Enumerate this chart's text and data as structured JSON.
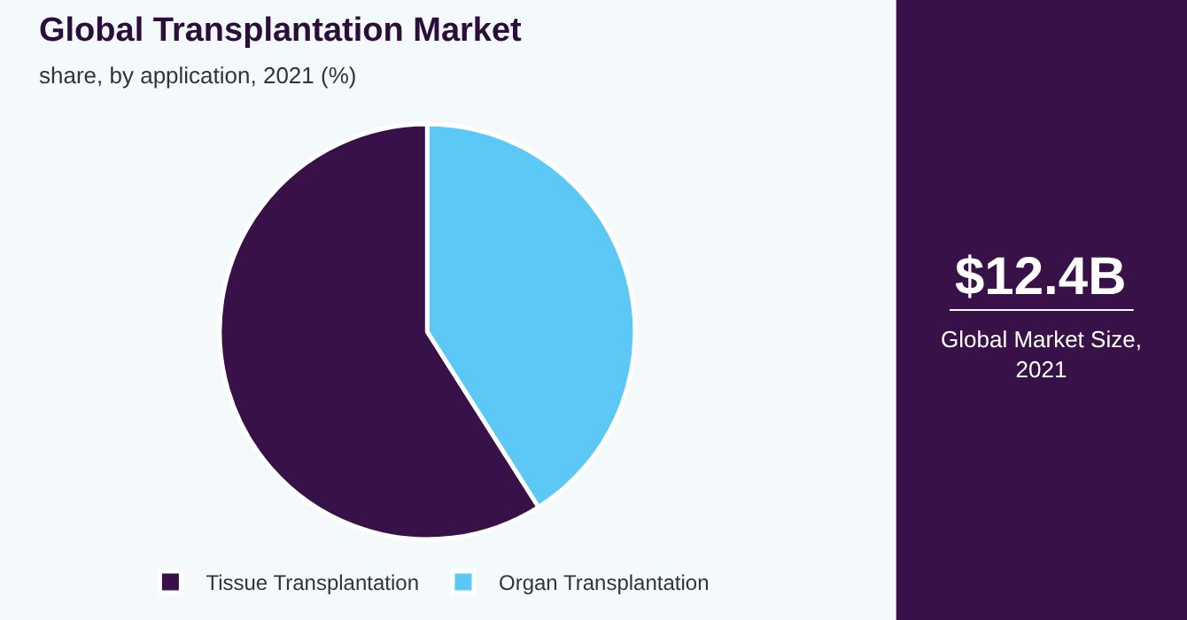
{
  "chart_data": {
    "type": "pie",
    "title": "Global Transplantation Market",
    "subtitle": "share, by application, 2021 (%)",
    "categories": [
      "Tissue Transplantation",
      "Organ Transplantation"
    ],
    "values": [
      59,
      41
    ],
    "colors": [
      "#371147",
      "#5bc8f5"
    ],
    "legend": "bottom",
    "annotations": [
      "$12.4B",
      "Global Market Size, 2021"
    ]
  }
}
